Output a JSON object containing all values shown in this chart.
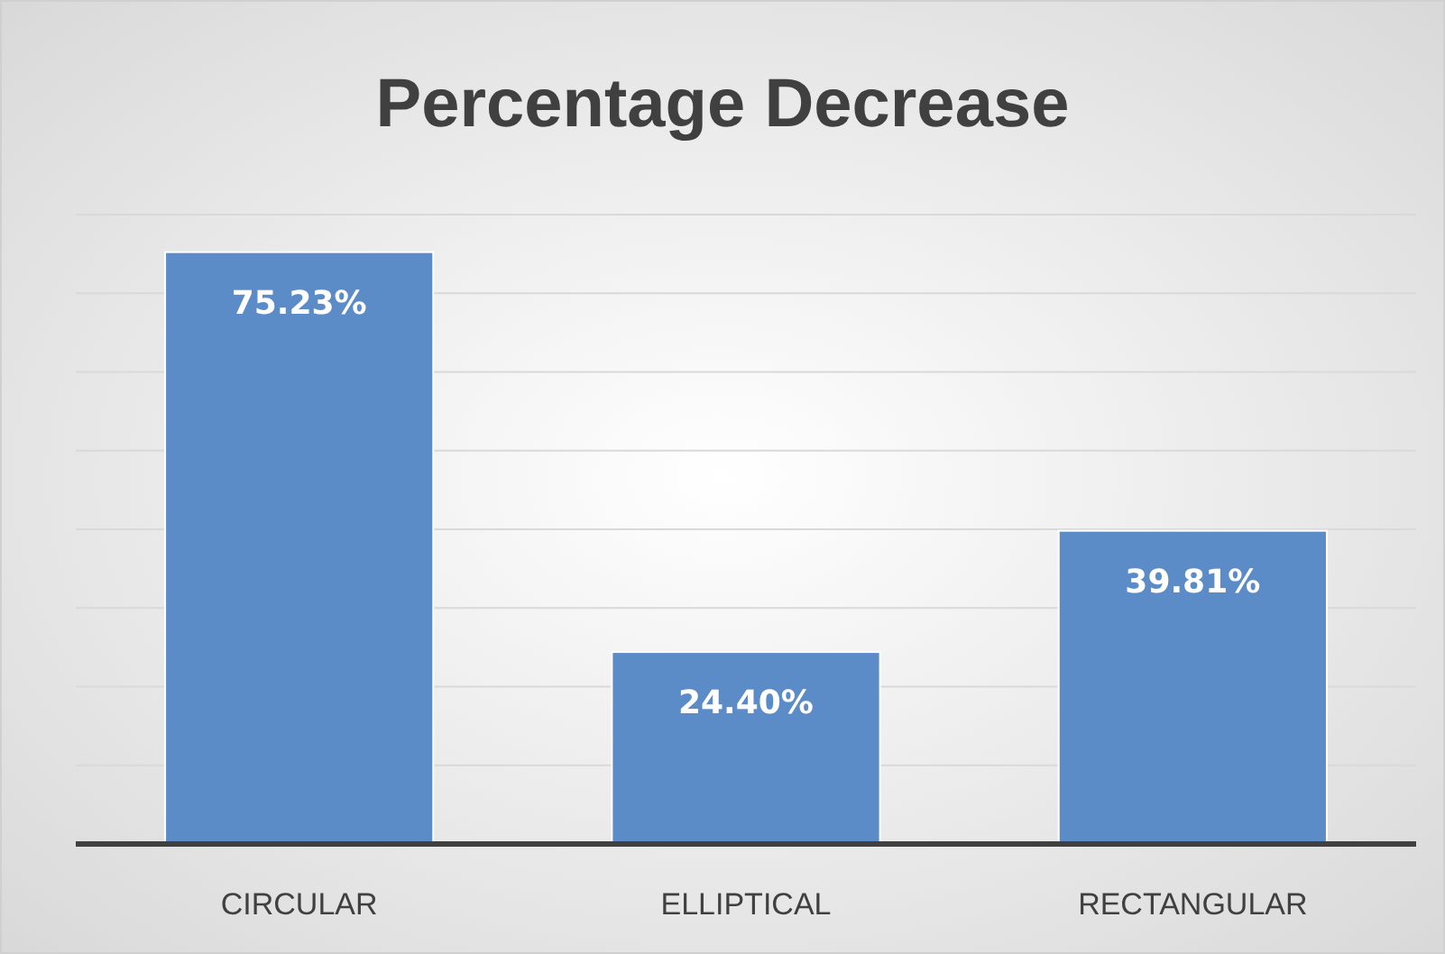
{
  "chart_data": {
    "type": "bar",
    "title": "Percentage Decrease",
    "categories": [
      "CIRCULAR",
      "ELLIPTICAL",
      "RECTANGULAR"
    ],
    "values": [
      75.23,
      24.4,
      39.81
    ],
    "value_labels": [
      "75.23%",
      "24.40%",
      "39.81%"
    ],
    "color": "#5b8cc8",
    "ylim": [
      0,
      80
    ],
    "yticks": [
      {
        "value": 0,
        "label": null
      },
      {
        "value": 10,
        "label": null
      },
      {
        "value": 20,
        "label": null
      },
      {
        "value": 30,
        "label": null
      },
      {
        "value": 40,
        "label": null
      },
      {
        "value": 50,
        "label": null
      },
      {
        "value": 60,
        "label": null
      },
      {
        "value": 70,
        "label": null
      },
      {
        "value": 80,
        "label": null
      }
    ],
    "tick_labels": "x",
    "grid": "y"
  }
}
